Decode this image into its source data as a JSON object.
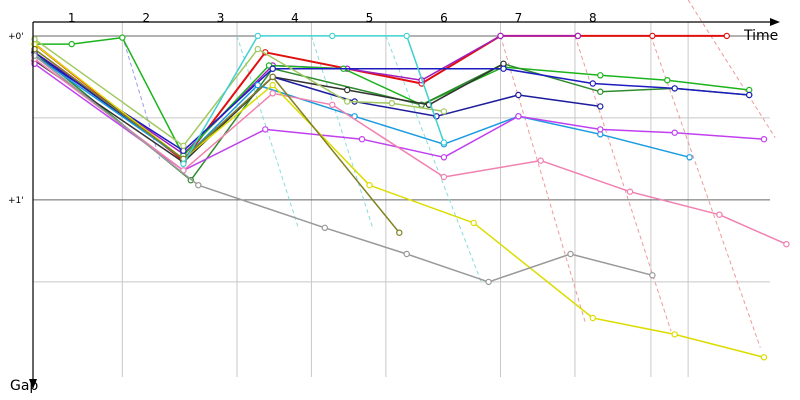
{
  "chart_data": {
    "type": "line",
    "title": "",
    "xlabel": "Time",
    "ylabel": "Gap",
    "lap_labels": [
      "1",
      "2",
      "3",
      "4",
      "5",
      "6",
      "7",
      "8"
    ],
    "lap_times": [
      0.5,
      1.5,
      2.5,
      3.5,
      4.5,
      5.5,
      6.5,
      7.5
    ],
    "xlim": [
      -0.02,
      9.88
    ],
    "ylim": [
      -0.085,
      2.08
    ],
    "y_ticks": [
      {
        "value": 0,
        "label": "+0'"
      },
      {
        "value": 1,
        "label": "+1'"
      }
    ],
    "y_minor_gridlines": [
      0.5,
      1.5
    ],
    "time_gridlines": [
      1.18,
      2.72,
      3.72,
      4.72,
      6.26,
      7.26,
      8.28,
      8.78
    ],
    "lapped_lines": [
      {
        "color": "#9999ee",
        "points": [
          [
            1.18,
            0.0
          ],
          [
            1.68,
            0.75
          ]
        ]
      },
      {
        "color": "#88dddd",
        "points": [
          [
            2.72,
            0.0
          ],
          [
            3.55,
            1.18
          ]
        ]
      },
      {
        "color": "#88dddd",
        "points": [
          [
            3.72,
            0.0
          ],
          [
            4.55,
            1.18
          ]
        ]
      },
      {
        "color": "#88dddd",
        "points": [
          [
            4.72,
            0.0
          ],
          [
            6.0,
            1.5
          ]
        ]
      },
      {
        "color": "#ee9999",
        "points": [
          [
            6.26,
            0.0
          ],
          [
            7.4,
            1.75
          ]
        ]
      },
      {
        "color": "#ee9999",
        "points": [
          [
            7.26,
            0.0
          ],
          [
            8.55,
            1.8
          ]
        ]
      },
      {
        "color": "#ee9999",
        "points": [
          [
            8.28,
            0.0
          ],
          [
            9.75,
            1.9
          ]
        ]
      },
      {
        "color": "#ee9999",
        "points": [
          [
            8.78,
            -0.22
          ],
          [
            9.95,
            0.62
          ]
        ]
      }
    ],
    "series": [
      {
        "name": "red",
        "color": "#e01010",
        "width": 2,
        "points": [
          [
            0.0,
            0.05
          ],
          [
            2.0,
            0.76
          ],
          [
            3.1,
            0.1
          ],
          [
            5.2,
            0.29
          ],
          [
            6.26,
            0.0
          ],
          [
            7.3,
            0.0
          ],
          [
            8.3,
            0.0
          ],
          [
            9.3,
            0.0
          ]
        ]
      },
      {
        "name": "purple",
        "color": "#a020c0",
        "width": 1.5,
        "points": [
          [
            0.0,
            0.1
          ],
          [
            2.0,
            0.72
          ],
          [
            3.2,
            0.18
          ],
          [
            4.2,
            0.2
          ],
          [
            5.2,
            0.27
          ],
          [
            6.26,
            0.0
          ],
          [
            7.3,
            0.0
          ]
        ]
      },
      {
        "name": "green",
        "color": "#1cb41c",
        "width": 1.5,
        "points": [
          [
            0.0,
            0.05
          ],
          [
            0.5,
            0.05
          ],
          [
            1.18,
            0.01
          ],
          [
            2.0,
            0.73
          ],
          [
            3.15,
            0.18
          ],
          [
            4.15,
            0.2
          ],
          [
            5.2,
            0.42
          ],
          [
            6.3,
            0.19
          ],
          [
            7.6,
            0.24
          ],
          [
            8.5,
            0.27
          ],
          [
            9.6,
            0.33
          ]
        ]
      },
      {
        "name": "olive",
        "color": "#2e8b2e",
        "width": 1.5,
        "points": [
          [
            0.0,
            0.1
          ],
          [
            2.1,
            0.88
          ],
          [
            3.2,
            0.2
          ],
          [
            5.2,
            0.42
          ],
          [
            6.3,
            0.17
          ],
          [
            7.6,
            0.34
          ],
          [
            8.6,
            0.32
          ],
          [
            9.6,
            0.36
          ]
        ]
      },
      {
        "name": "dark",
        "color": "#333333",
        "width": 1.5,
        "points": [
          [
            0.0,
            0.15
          ],
          [
            2.0,
            0.77
          ],
          [
            3.2,
            0.25
          ],
          [
            4.2,
            0.33
          ],
          [
            5.3,
            0.42
          ],
          [
            6.3,
            0.17
          ]
        ]
      },
      {
        "name": "navy",
        "color": "#1c1c9c",
        "width": 1.5,
        "points": [
          [
            0.0,
            0.1
          ],
          [
            2.0,
            0.75
          ],
          [
            3.2,
            0.25
          ],
          [
            4.3,
            0.4
          ],
          [
            5.4,
            0.49
          ],
          [
            6.5,
            0.36
          ],
          [
            7.6,
            0.43
          ]
        ]
      },
      {
        "name": "blue",
        "color": "#1c1cc0",
        "width": 1.5,
        "points": [
          [
            0.0,
            0.12
          ],
          [
            2.0,
            0.7
          ],
          [
            3.2,
            0.2
          ],
          [
            6.3,
            0.2
          ],
          [
            7.5,
            0.29
          ],
          [
            8.6,
            0.32
          ],
          [
            9.6,
            0.36
          ]
        ]
      },
      {
        "name": "skyblue",
        "color": "#1a9be0",
        "width": 1.5,
        "points": [
          [
            0.0,
            0.12
          ],
          [
            2.0,
            0.75
          ],
          [
            3.0,
            0.3
          ],
          [
            4.3,
            0.49
          ],
          [
            5.5,
            0.66
          ],
          [
            6.5,
            0.49
          ],
          [
            7.6,
            0.6
          ],
          [
            8.8,
            0.74
          ]
        ]
      },
      {
        "name": "violet",
        "color": "#c040f0",
        "width": 1.5,
        "points": [
          [
            0.0,
            0.17
          ],
          [
            2.0,
            0.82
          ],
          [
            3.1,
            0.57
          ],
          [
            4.4,
            0.63
          ],
          [
            5.5,
            0.74
          ],
          [
            6.5,
            0.49
          ],
          [
            7.6,
            0.57
          ],
          [
            8.6,
            0.59
          ],
          [
            9.8,
            0.63
          ]
        ]
      },
      {
        "name": "pink",
        "color": "#f080b0",
        "width": 1.5,
        "points": [
          [
            0.0,
            0.14
          ],
          [
            2.0,
            0.82
          ],
          [
            3.2,
            0.35
          ],
          [
            4.0,
            0.42
          ],
          [
            5.5,
            0.86
          ],
          [
            6.8,
            0.76
          ],
          [
            8.0,
            0.95
          ],
          [
            9.2,
            1.09
          ],
          [
            10.1,
            1.27
          ]
        ]
      },
      {
        "name": "yellow",
        "color": "#dcdc00",
        "width": 1.5,
        "points": [
          [
            0.0,
            0.05
          ],
          [
            2.0,
            0.75
          ],
          [
            3.2,
            0.3
          ],
          [
            4.5,
            0.91
          ],
          [
            5.9,
            1.14
          ],
          [
            7.5,
            1.72
          ],
          [
            8.6,
            1.82
          ],
          [
            9.8,
            1.96
          ]
        ]
      },
      {
        "name": "lightgreen",
        "color": "#a0c860",
        "width": 1.5,
        "points": [
          [
            0.0,
            0.02
          ],
          [
            2.0,
            0.67
          ],
          [
            3.0,
            0.08
          ],
          [
            4.2,
            0.4
          ],
          [
            4.8,
            0.41
          ],
          [
            5.5,
            0.46
          ]
        ]
      },
      {
        "name": "olive-drab",
        "color": "#808020",
        "width": 1.5,
        "points": [
          [
            0.0,
            0.08
          ],
          [
            2.0,
            0.75
          ],
          [
            3.2,
            0.25
          ],
          [
            4.9,
            1.2
          ]
        ]
      },
      {
        "name": "grey",
        "color": "#999999",
        "width": 1.5,
        "points": [
          [
            0.0,
            0.12
          ],
          [
            2.2,
            0.91
          ],
          [
            3.9,
            1.17
          ],
          [
            5.0,
            1.33
          ],
          [
            6.1,
            1.5
          ],
          [
            7.2,
            1.33
          ],
          [
            8.3,
            1.46
          ]
        ]
      },
      {
        "name": "teal",
        "color": "#40d0d0",
        "width": 1.5,
        "points": [
          [
            2.0,
            0.78
          ],
          [
            3.0,
            0.0
          ],
          [
            4.0,
            0.0
          ],
          [
            5.0,
            0.0
          ],
          [
            5.5,
            0.65
          ]
        ]
      }
    ]
  }
}
